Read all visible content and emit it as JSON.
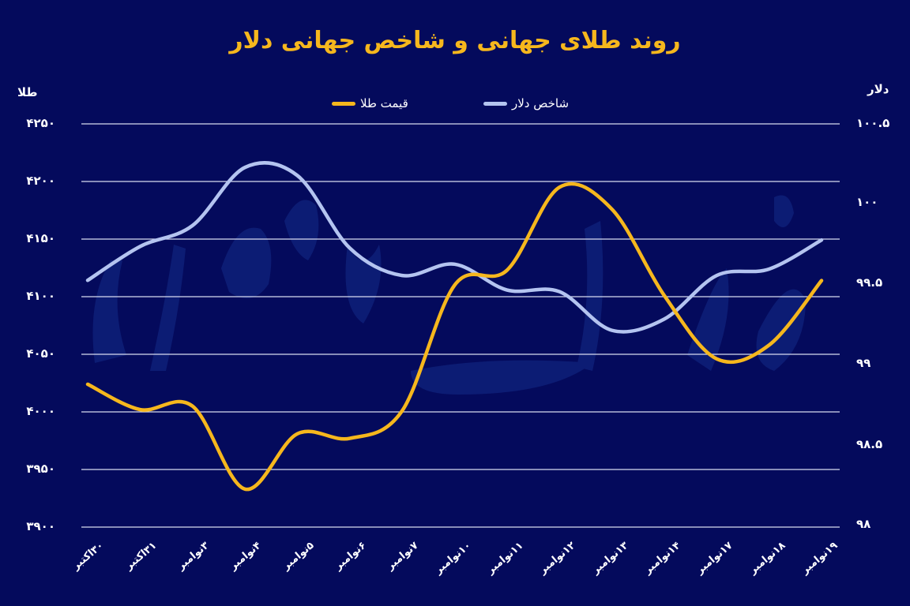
{
  "title": "روند طلای جهانی و شاخص جهانی دلار",
  "axes": {
    "left_unit": "طلا",
    "right_unit": "دلار",
    "left_ticks": [
      "۴۲۵۰",
      "۴۲۰۰",
      "۴۱۵۰",
      "۴۱۰۰",
      "۴۰۵۰",
      "۴۰۰۰",
      "۳۹۵۰",
      "۳۹۰۰"
    ],
    "right_ticks": [
      "۱۰۰.۵",
      "۱۰۰",
      "۹۹.۵",
      "۹۹",
      "۹۸.۵",
      "۹۸"
    ]
  },
  "legend": {
    "gold_label": "قیمت طلا",
    "dollar_label": "شاخص دلار"
  },
  "colors": {
    "background": "#040a5c",
    "gold": "#f6b71d",
    "dollar": "#b4c4f0",
    "grid": "#d8dcf0",
    "title": "#f6b71d"
  },
  "chart_data": {
    "type": "line",
    "title": "روند طلای جهانی و شاخص جهانی دلار",
    "xlabel": "",
    "ylabel": "طلا",
    "ylabel_right": "دلار",
    "categories": [
      "۳۰اکتبر",
      "۳۱اکتبر",
      "۳نوامبر",
      "۴نوامبر",
      "۵نوامبر",
      "۶نوامبر",
      "۷نوامبر",
      "۱۰نوامبر",
      "۱۱نوامبر",
      "۱۲نوامبر",
      "۱۳نوامبر",
      "۱۴نوامبر",
      "۱۷نوامبر",
      "۱۸نوامبر",
      "۱۹نوامبر"
    ],
    "categories_en": [
      "30 Oct",
      "31 Oct",
      "3 Nov",
      "4 Nov",
      "5 Nov",
      "6 Nov",
      "7 Nov",
      "10 Nov",
      "11 Nov",
      "12 Nov",
      "13 Nov",
      "14 Nov",
      "17 Nov",
      "18 Nov",
      "19 Nov"
    ],
    "series": [
      {
        "name": "قیمت طلا",
        "axis": "left",
        "color": "#f6b71d",
        "values": [
          4024,
          4002,
          4005,
          3933,
          3981,
          3977,
          4001,
          4110,
          4123,
          4195,
          4176,
          4101,
          4046,
          4058,
          4114
        ]
      },
      {
        "name": "شاخص دلار",
        "axis": "right",
        "color": "#b4c4f0",
        "values": [
          99.53,
          99.74,
          99.87,
          100.23,
          100.18,
          99.73,
          99.56,
          99.63,
          99.47,
          99.46,
          99.22,
          99.29,
          99.56,
          99.6,
          99.78
        ]
      }
    ],
    "ylim": [
      3900,
      4250
    ],
    "ylim_right": [
      98,
      100.5
    ],
    "grid": true,
    "legend_position": "top"
  }
}
